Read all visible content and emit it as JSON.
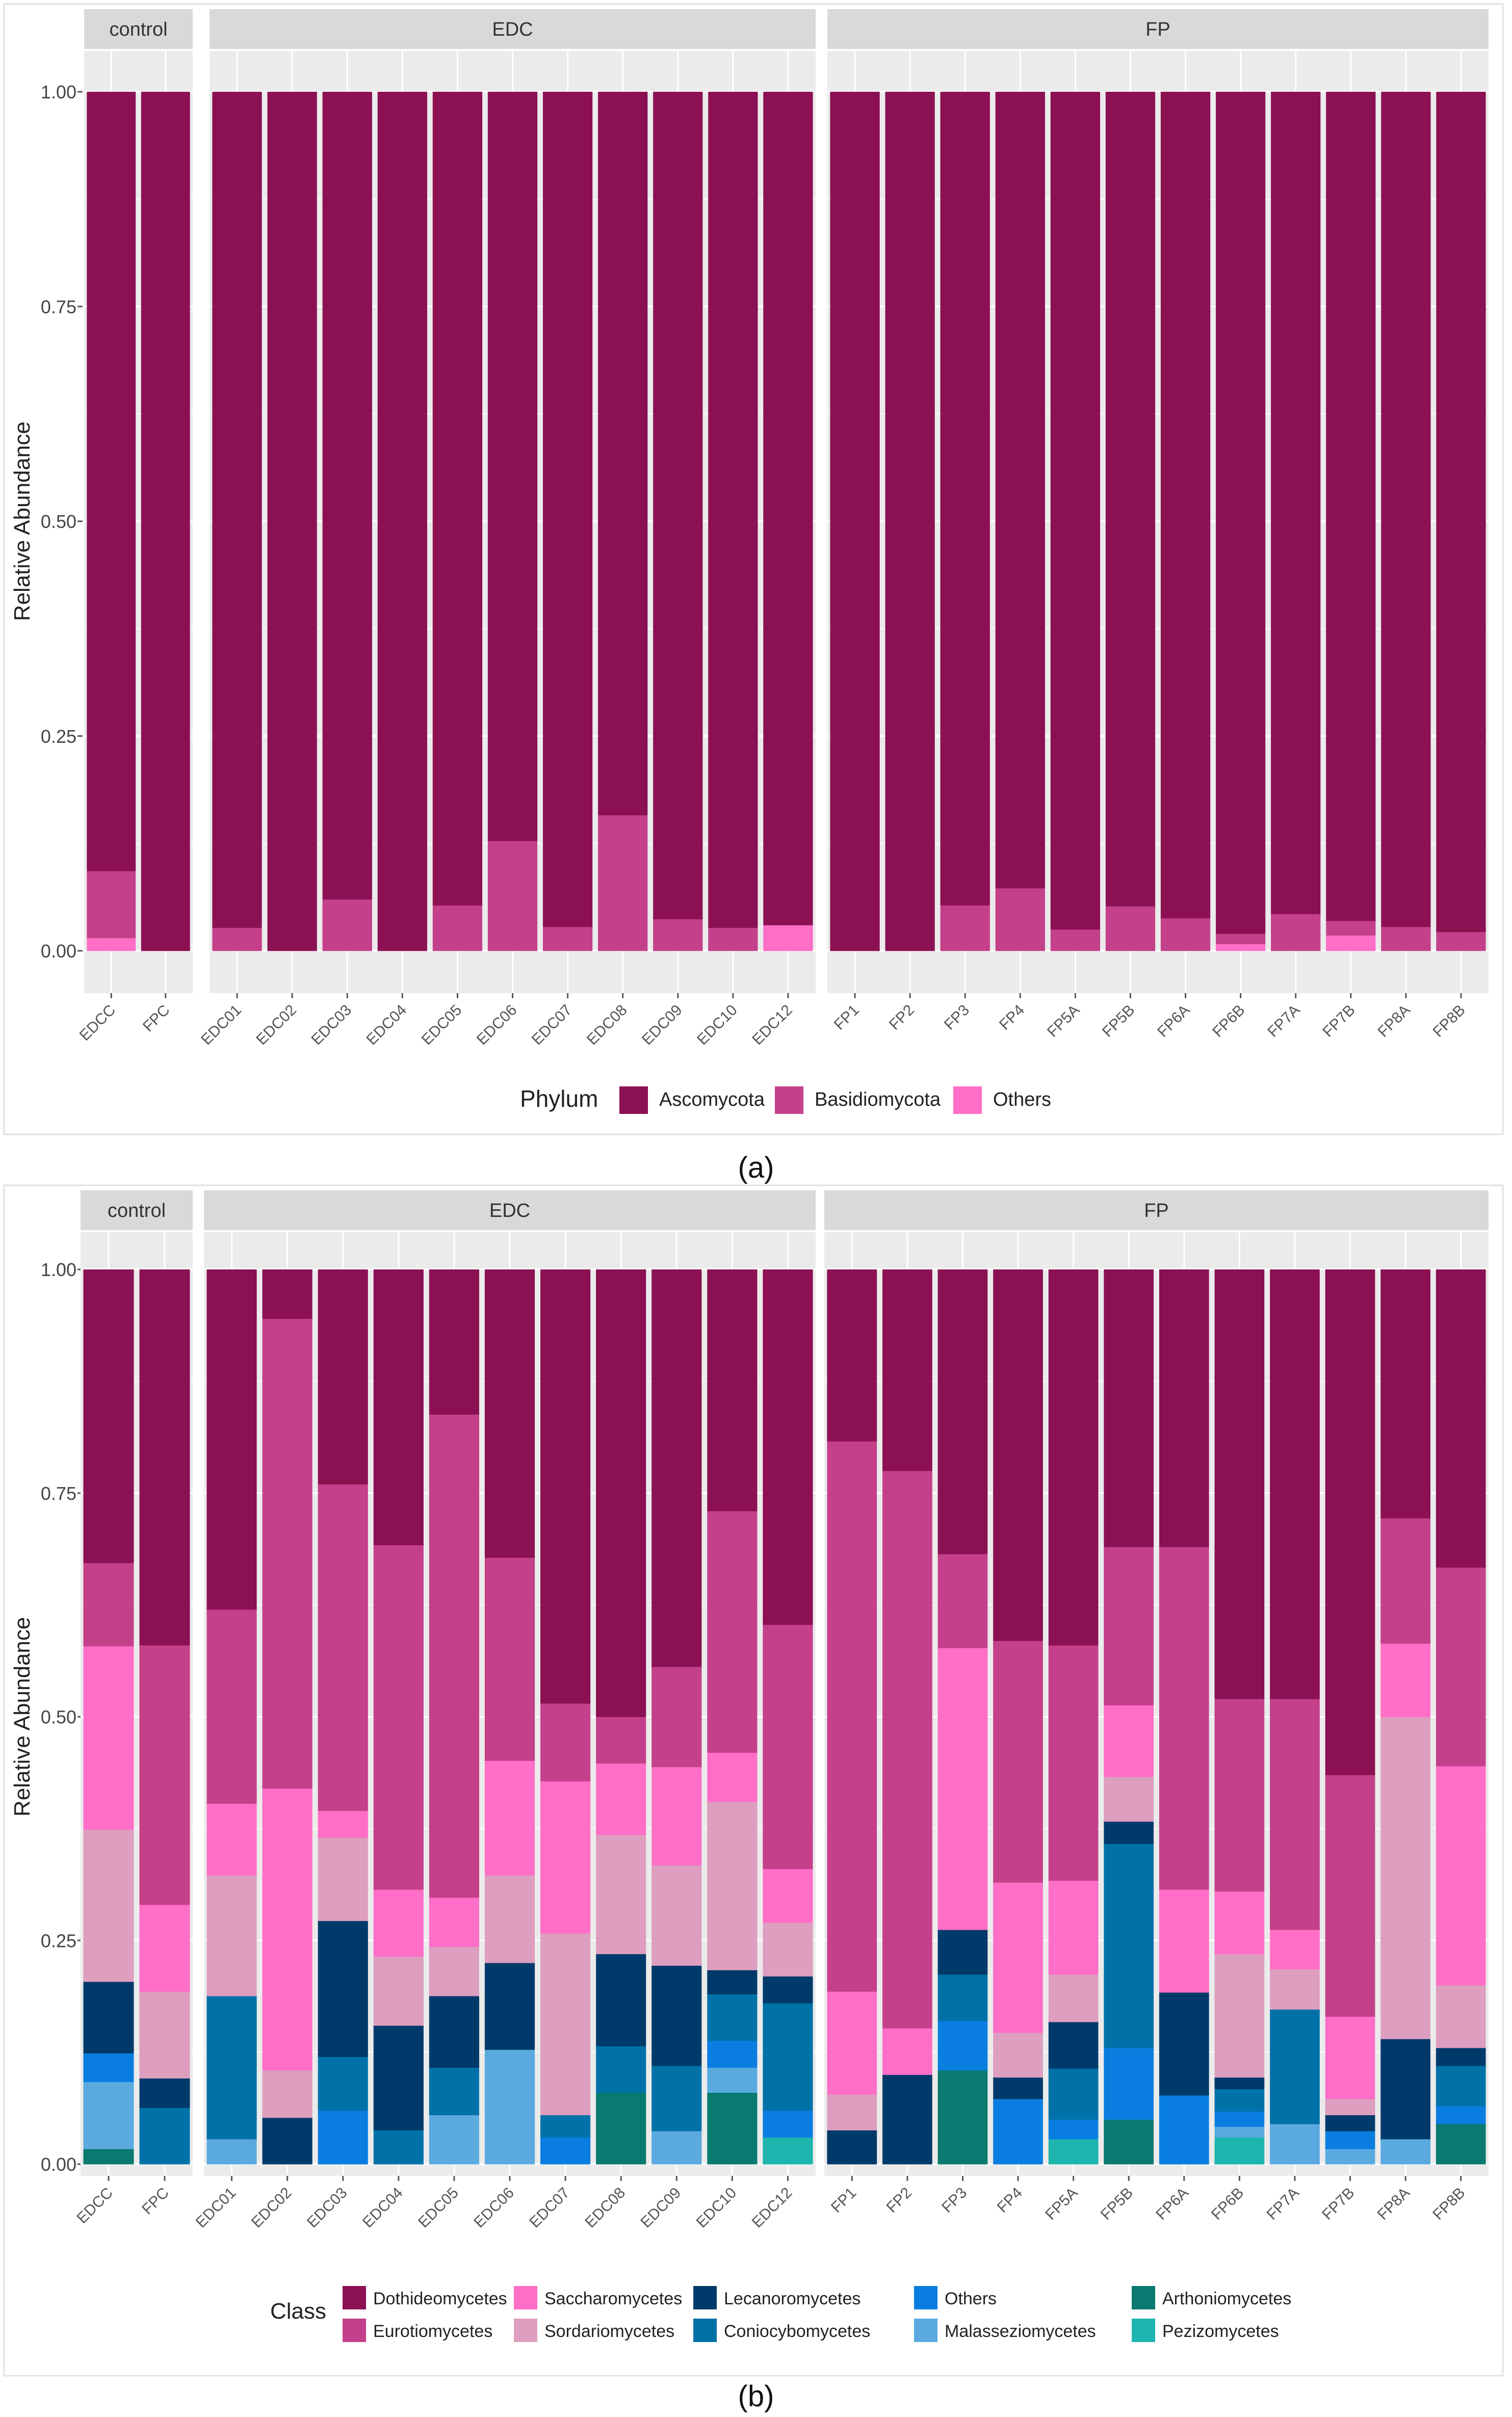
{
  "colors": {
    "Dothideomycetes": "#8b1153",
    "Eurotiomycetes": "#c4408a",
    "Saccharomycetes": "#ff6ec7",
    "Sordariomycetes": "#dd9ebf",
    "Lecanoromycetes": "#003a6b",
    "Coniocybomycetes": "#0072a8",
    "Others": "#0a7ee0",
    "Malasseziomycetes": "#5aaae0",
    "Arthoniomycetes": "#087a70",
    "Pezizomycetes": "#1db5ad",
    "Ascomycota": "#8b1153",
    "Basidiomycota": "#c4408a",
    "PhylumOthers": "#ff6ec7"
  },
  "chart_data": [
    {
      "type": "bar",
      "stacked": true,
      "panel_label": "(a)",
      "ylabel": "Relative Abundance",
      "yticks": [
        "0.00",
        "0.25",
        "0.50",
        "0.75",
        "1.00"
      ],
      "ylim": [
        0,
        1
      ],
      "facets": [
        {
          "name": "control",
          "categories": [
            "EDCC",
            "FPC"
          ]
        },
        {
          "name": "EDC",
          "categories": [
            "EDC01",
            "EDC02",
            "EDC03",
            "EDC04",
            "EDC05",
            "EDC06",
            "EDC07",
            "EDC08",
            "EDC09",
            "EDC10",
            "EDC12"
          ]
        },
        {
          "name": "FP",
          "categories": [
            "FP1",
            "FP2",
            "FP3",
            "FP4",
            "FP5A",
            "FP5B",
            "FP6A",
            "FP6B",
            "FP7A",
            "FP7B",
            "FP8A",
            "FP8B"
          ]
        }
      ],
      "legend": {
        "title": "Phylum",
        "position": "bottom",
        "entries": [
          "Ascomycota",
          "Basidiomycota",
          "Others"
        ]
      },
      "series_colors": [
        "#ff6ec7",
        "#c4408a",
        "#8b1153"
      ],
      "stack_order": [
        "Others",
        "Basidiomycota",
        "Ascomycota"
      ],
      "values": {
        "EDCC": [
          0.015,
          0.078,
          0.907
        ],
        "FPC": [
          0,
          0,
          1
        ],
        "EDC01": [
          0,
          0.027,
          0.973
        ],
        "EDC02": [
          0,
          0,
          1
        ],
        "EDC03": [
          0,
          0.06,
          0.94
        ],
        "EDC04": [
          0,
          0,
          1
        ],
        "EDC05": [
          0,
          0.053,
          0.947
        ],
        "EDC06": [
          0,
          0.128,
          0.872
        ],
        "EDC07": [
          0,
          0.028,
          0.972
        ],
        "EDC08": [
          0,
          0.158,
          0.842
        ],
        "EDC09": [
          0,
          0.037,
          0.963
        ],
        "EDC10": [
          0,
          0.027,
          0.973
        ],
        "EDC12": [
          0.03,
          0,
          0.97
        ],
        "FP1": [
          0,
          0,
          1
        ],
        "FP2": [
          0,
          0,
          1
        ],
        "FP3": [
          0,
          0.053,
          0.947
        ],
        "FP4": [
          0,
          0.073,
          0.927
        ],
        "FP5A": [
          0,
          0.025,
          0.975
        ],
        "FP5B": [
          0,
          0.052,
          0.948
        ],
        "FP6A": [
          0,
          0.038,
          0.962
        ],
        "FP6B": [
          0.008,
          0.012,
          0.98
        ],
        "FP7A": [
          0,
          0.043,
          0.957
        ],
        "FP7B": [
          0.018,
          0.017,
          0.965
        ],
        "FP8A": [
          0,
          0.028,
          0.972
        ],
        "FP8B": [
          0,
          0.022,
          0.978
        ]
      }
    },
    {
      "type": "bar",
      "stacked": true,
      "panel_label": "(b)",
      "ylabel": "Relative Abundance",
      "yticks": [
        "0.00",
        "0.25",
        "0.50",
        "0.75",
        "1.00"
      ],
      "ylim": [
        0,
        1
      ],
      "facets": [
        {
          "name": "control",
          "categories": [
            "EDCC",
            "FPC"
          ]
        },
        {
          "name": "EDC",
          "categories": [
            "EDC01",
            "EDC02",
            "EDC03",
            "EDC04",
            "EDC05",
            "EDC06",
            "EDC07",
            "EDC08",
            "EDC09",
            "EDC10",
            "EDC12"
          ]
        },
        {
          "name": "FP",
          "categories": [
            "FP1",
            "FP2",
            "FP3",
            "FP4",
            "FP5A",
            "FP5B",
            "FP6A",
            "FP6B",
            "FP7A",
            "FP7B",
            "FP8A",
            "FP8B"
          ]
        }
      ],
      "legend": {
        "title": "Class",
        "position": "bottom",
        "entries": [
          "Dothideomycetes",
          "Eurotiomycetes",
          "Saccharomycetes",
          "Sordariomycetes",
          "Lecanoromycetes",
          "Coniocybomycetes",
          "Others",
          "Malasseziomycetes",
          "Arthoniomycetes",
          "Pezizomycetes"
        ]
      },
      "series_colors": [
        "#1db5ad",
        "#087a70",
        "#5aaae0",
        "#0a7ee0",
        "#0072a8",
        "#003a6b",
        "#dd9ebf",
        "#ff6ec7",
        "#c4408a",
        "#8b1153"
      ],
      "stack_order": [
        "Pezizomycetes",
        "Arthoniomycetes",
        "Malasseziomycetes",
        "Others",
        "Coniocybomycetes",
        "Lecanoromycetes",
        "Sordariomycetes",
        "Saccharomycetes",
        "Eurotiomycetes",
        "Dothideomycetes"
      ],
      "values": {
        "EDCC": [
          0,
          0.017,
          0.075,
          0.032,
          0,
          0.08,
          0.17,
          0.205,
          0.093,
          0.328
        ],
        "FPC": [
          0,
          0,
          0,
          0,
          0.063,
          0.033,
          0.097,
          0.097,
          0.29,
          0.42
        ],
        "EDC01": [
          0,
          0,
          0.028,
          0,
          0.16,
          0,
          0.135,
          0.08,
          0.217,
          0.38
        ],
        "EDC02": [
          0,
          0,
          0,
          0,
          0,
          0.052,
          0.053,
          0.315,
          0.525,
          0.055
        ],
        "EDC03": [
          0,
          0,
          0,
          0.06,
          0.06,
          0.152,
          0.093,
          0.03,
          0.365,
          0.24
        ],
        "EDC04": [
          0,
          0,
          0,
          0,
          0.038,
          0.117,
          0.077,
          0.075,
          0.385,
          0.308
        ],
        "EDC05": [
          0,
          0,
          0.055,
          0,
          0.053,
          0.08,
          0.055,
          0.055,
          0.54,
          0.162
        ],
        "EDC06": [
          0,
          0,
          0.128,
          0,
          0,
          0.097,
          0.098,
          0.128,
          0.227,
          0.322
        ],
        "EDC07": [
          0,
          0,
          0,
          0.03,
          0.025,
          0,
          0.203,
          0.17,
          0.087,
          0.485
        ],
        "EDC08": [
          0,
          0.08,
          0,
          0,
          0.052,
          0.103,
          0.133,
          0.08,
          0.052,
          0.5
        ],
        "EDC09": [
          0,
          0,
          0.037,
          0,
          0.073,
          0.112,
          0.112,
          0.11,
          0.112,
          0.444
        ],
        "EDC10": [
          0,
          0.08,
          0.028,
          0.03,
          0.052,
          0.027,
          0.188,
          0.055,
          0.27,
          0.27
        ],
        "EDC12": [
          0.03,
          0,
          0,
          0.03,
          0.12,
          0.03,
          0.06,
          0.06,
          0.273,
          0.397
        ],
        "FP1": [
          0,
          0,
          0,
          0,
          0,
          0.038,
          0.04,
          0.115,
          0.615,
          0.192
        ],
        "FP2": [
          0,
          0,
          0,
          0,
          0,
          0.1,
          0,
          0.052,
          0.623,
          0.225
        ],
        "FP3": [
          0,
          0.105,
          0,
          0.055,
          0.052,
          0.05,
          0,
          0.315,
          0.105,
          0.318
        ],
        "FP4": [
          0,
          0,
          0,
          0.073,
          0,
          0.024,
          0.05,
          0.168,
          0.27,
          0.415
        ],
        "FP5A": [
          0.028,
          0,
          0,
          0.022,
          0.057,
          0.052,
          0.053,
          0.105,
          0.263,
          0.42
        ],
        "FP5B": [
          0,
          0.05,
          0,
          0.08,
          0.228,
          0.025,
          0.05,
          0.08,
          0.177,
          0.31
        ],
        "FP6A": [
          0,
          0,
          0,
          0.077,
          0,
          0.115,
          0,
          0.115,
          0.383,
          0.31
        ],
        "FP6B": [
          0.03,
          0,
          0.012,
          0.017,
          0.025,
          0.013,
          0.138,
          0.07,
          0.215,
          0.48
        ],
        "FP7A": [
          0,
          0,
          0.045,
          0,
          0.128,
          0,
          0.045,
          0.044,
          0.258,
          0.48
        ],
        "FP7B": [
          0,
          0,
          0.017,
          0.02,
          0,
          0.018,
          0.018,
          0.092,
          0.27,
          0.565
        ],
        "FP8A": [
          0,
          0,
          0.028,
          0,
          0,
          0.112,
          0.36,
          0.082,
          0.14,
          0.278
        ],
        "FP8B": [
          0,
          0.045,
          0,
          0.02,
          0.045,
          0.02,
          0.07,
          0.245,
          0.222,
          0.333
        ]
      }
    }
  ]
}
